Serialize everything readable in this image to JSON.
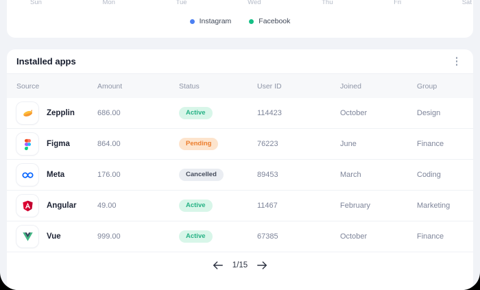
{
  "page": {
    "background": "#f1f3f7",
    "frame_background": "#000000"
  },
  "chart_card": {
    "x_labels": [
      "Sun",
      "Mon",
      "Tue",
      "Wed",
      "Thu",
      "Fri",
      "Sat"
    ],
    "legend": [
      {
        "label": "Instagram",
        "color": "#4c80f2"
      },
      {
        "label": "Facebook",
        "color": "#14bf85"
      }
    ]
  },
  "apps_card": {
    "title": "Installed apps",
    "menu_icon": "kebab-menu",
    "columns": [
      "Source",
      "Amount",
      "Status",
      "User ID",
      "Joined",
      "Group"
    ],
    "rows": [
      {
        "source": "Zepplin",
        "icon": "zeplin-logo",
        "amount": "686.00",
        "status": "Active",
        "status_type": "active",
        "user_id": "114423",
        "joined": "October",
        "group": "Design"
      },
      {
        "source": "Figma",
        "icon": "figma-logo",
        "amount": "864.00",
        "status": "Pending",
        "status_type": "pending",
        "user_id": "76223",
        "joined": "June",
        "group": "Finance"
      },
      {
        "source": "Meta",
        "icon": "meta-logo",
        "amount": "176.00",
        "status": "Cancelled",
        "status_type": "cancelled",
        "user_id": "89453",
        "joined": "March",
        "group": "Coding"
      },
      {
        "source": "Angular",
        "icon": "angular-logo",
        "amount": "49.00",
        "status": "Active",
        "status_type": "active",
        "user_id": "11467",
        "joined": "February",
        "group": "Marketing"
      },
      {
        "source": "Vue",
        "icon": "vue-logo",
        "amount": "999.00",
        "status": "Active",
        "status_type": "active",
        "user_id": "67385",
        "joined": "October",
        "group": "Finance"
      }
    ],
    "pagination": {
      "current": "1",
      "total": "15",
      "display": "1/15"
    }
  },
  "status_colors": {
    "active": {
      "bg": "#d8f6e9",
      "text": "#25b184"
    },
    "pending": {
      "bg": "#fde4cd",
      "text": "#ec7d2c"
    },
    "cancelled": {
      "bg": "#eaedf2",
      "text": "#454c5c"
    }
  }
}
